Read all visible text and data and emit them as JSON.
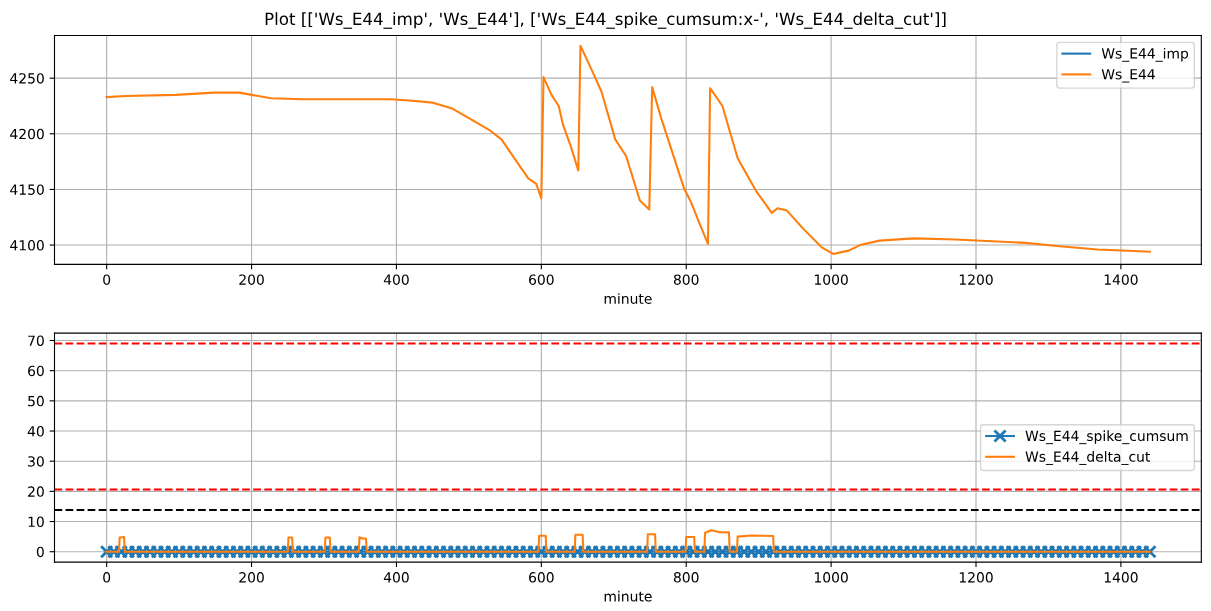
{
  "chart_data": [
    {
      "type": "line",
      "title": "Plot [['Ws_E44_imp', 'Ws_E44'], ['Ws_E44_spike_cumsum:x-', 'Ws_E44_delta_cut']]",
      "xlabel": "minute",
      "xlim": [
        -72,
        1511
      ],
      "xticks": [
        0,
        200,
        400,
        600,
        800,
        1000,
        1200,
        1400
      ],
      "ylim": [
        4082.6,
        4288.4
      ],
      "yticks": [
        4100,
        4150,
        4200,
        4250
      ],
      "grid": true,
      "legend": "top right",
      "marker": "none",
      "line_style": "solid",
      "series": [
        {
          "name": "Ws_E44_imp",
          "color": "#1f77b4"
        },
        {
          "name": "Ws_E44",
          "color": "#ff7f0e",
          "x": [
            0,
            26,
            95,
            148,
            183,
            200,
            227,
            270,
            317,
            392,
            418,
            450,
            476,
            503,
            529,
            545,
            566,
            582,
            593,
            600,
            603,
            614,
            624,
            630,
            640,
            651,
            654,
            667,
            683,
            702,
            717,
            736,
            749,
            753,
            765,
            797,
            807,
            818,
            830,
            833,
            850,
            871,
            897,
            918,
            926,
            939,
            961,
            987,
            1003,
            1024,
            1040,
            1067,
            1114,
            1172,
            1268,
            1315,
            1368,
            1440
          ],
          "values": [
            4233,
            4234,
            4235,
            4237,
            4237,
            4235,
            4232,
            4231,
            4231,
            4231,
            4230,
            4228,
            4223,
            4213,
            4203,
            4195,
            4175,
            4160,
            4155,
            4142,
            4251,
            4235,
            4225,
            4208,
            4190,
            4167,
            4279,
            4261,
            4238,
            4195,
            4180,
            4140,
            4132,
            4242,
            4215,
            4151,
            4138,
            4120,
            4101,
            4241,
            4225,
            4178,
            4148,
            4129,
            4133,
            4131,
            4115,
            4098,
            4092,
            4095,
            4100,
            4104,
            4106,
            4105,
            4102,
            4099,
            4096,
            4094
          ]
        }
      ]
    },
    {
      "type": "line",
      "xlabel": "minute",
      "xlim": [
        -72,
        1511
      ],
      "xticks": [
        0,
        200,
        400,
        600,
        800,
        1000,
        1200,
        1400
      ],
      "ylim": [
        -3.45,
        72.45
      ],
      "yticks": [
        0,
        10,
        20,
        30,
        40,
        50,
        60,
        70
      ],
      "grid": true,
      "legend": "right",
      "line_style": "solid",
      "ref_lines": [
        {
          "axis": "y",
          "value": 69,
          "color": "#ff0000",
          "line_style": "dashed"
        },
        {
          "axis": "y",
          "value": 20.6,
          "color": "#ff0000",
          "line_style": "dashed"
        },
        {
          "axis": "y",
          "value": 13.8,
          "color": "#000000",
          "line_style": "dashed"
        }
      ],
      "series": [
        {
          "name": "Ws_E44_spike_cumsum",
          "color": "#1f77b4",
          "marker": "cross",
          "x": [
            0,
            10,
            20,
            30,
            40,
            50,
            60,
            70,
            80,
            90,
            100,
            110,
            120,
            130,
            140,
            150,
            160,
            170,
            180,
            190,
            200,
            210,
            220,
            230,
            240,
            250,
            260,
            270,
            280,
            290,
            300,
            310,
            320,
            330,
            340,
            350,
            360,
            370,
            380,
            390,
            400,
            410,
            420,
            430,
            440,
            450,
            460,
            470,
            480,
            490,
            500,
            510,
            520,
            530,
            540,
            550,
            560,
            570,
            580,
            590,
            600,
            610,
            620,
            630,
            640,
            650,
            660,
            670,
            680,
            690,
            700,
            710,
            720,
            730,
            740,
            750,
            760,
            770,
            780,
            790,
            800,
            810,
            820,
            830,
            840,
            850,
            860,
            870,
            880,
            890,
            900,
            910,
            920,
            930,
            940,
            950,
            960,
            970,
            980,
            990,
            1000,
            1010,
            1020,
            1030,
            1040,
            1050,
            1060,
            1070,
            1080,
            1090,
            1100,
            1110,
            1120,
            1130,
            1140,
            1150,
            1160,
            1170,
            1180,
            1190,
            1200,
            1210,
            1220,
            1230,
            1240,
            1250,
            1260,
            1270,
            1280,
            1290,
            1300,
            1310,
            1320,
            1330,
            1340,
            1350,
            1360,
            1370,
            1380,
            1390,
            1400,
            1410,
            1420,
            1430,
            1440
          ],
          "values": [
            0,
            0,
            0,
            0,
            0,
            0,
            0,
            0,
            0,
            0,
            0,
            0,
            0,
            0,
            0,
            0,
            0,
            0,
            0,
            0,
            0,
            0,
            0,
            0,
            0,
            0,
            0,
            0,
            0,
            0,
            0,
            0,
            0,
            0,
            0,
            0,
            0,
            0,
            0,
            0,
            0,
            0,
            0,
            0,
            0,
            0,
            0,
            0,
            0,
            0,
            0,
            0,
            0,
            0,
            0,
            0,
            0,
            0,
            0,
            0,
            0,
            0,
            0,
            0,
            0,
            0,
            0,
            0,
            0,
            0,
            0,
            0,
            0,
            0,
            0,
            0,
            0,
            0,
            0,
            0,
            0,
            0,
            0,
            0,
            0,
            0,
            0,
            0,
            0,
            0,
            0,
            0,
            0,
            0,
            0,
            0,
            0,
            0,
            0,
            0,
            0,
            0,
            0,
            0,
            0,
            0,
            0,
            0,
            0,
            0,
            0,
            0,
            0,
            0,
            0,
            0,
            0,
            0,
            0,
            0,
            0,
            0,
            0,
            0,
            0,
            0,
            0,
            0,
            0,
            0,
            0,
            0,
            0,
            0,
            0,
            0,
            0,
            0,
            0,
            0,
            0,
            0,
            0,
            0,
            0
          ]
        },
        {
          "name": "Ws_E44_delta_cut",
          "color": "#ff7f0e",
          "marker": "none",
          "x": [
            0,
            17,
            18,
            24,
            25,
            250,
            251,
            256,
            257,
            301,
            302,
            308,
            309,
            348,
            349,
            353,
            358,
            359,
            596,
            597,
            606,
            607,
            646,
            647,
            657,
            658,
            746,
            747,
            757,
            758,
            799,
            800,
            811,
            812,
            825,
            826,
            835,
            845,
            859,
            860,
            870,
            871,
            890,
            920,
            921,
            1440
          ],
          "values": [
            0,
            0,
            4.7,
            4.9,
            0,
            0,
            4.7,
            4.7,
            0,
            0,
            4.7,
            4.7,
            0,
            0,
            4.8,
            4.4,
            4.4,
            0,
            0,
            5.3,
            5.3,
            0,
            0,
            5.6,
            5.6,
            0,
            0,
            5.8,
            5.8,
            0,
            0,
            4.9,
            4.9,
            0,
            0,
            6.3,
            7.1,
            6.5,
            6.4,
            0,
            0,
            5.0,
            5.4,
            5.2,
            0,
            0
          ]
        }
      ]
    }
  ]
}
